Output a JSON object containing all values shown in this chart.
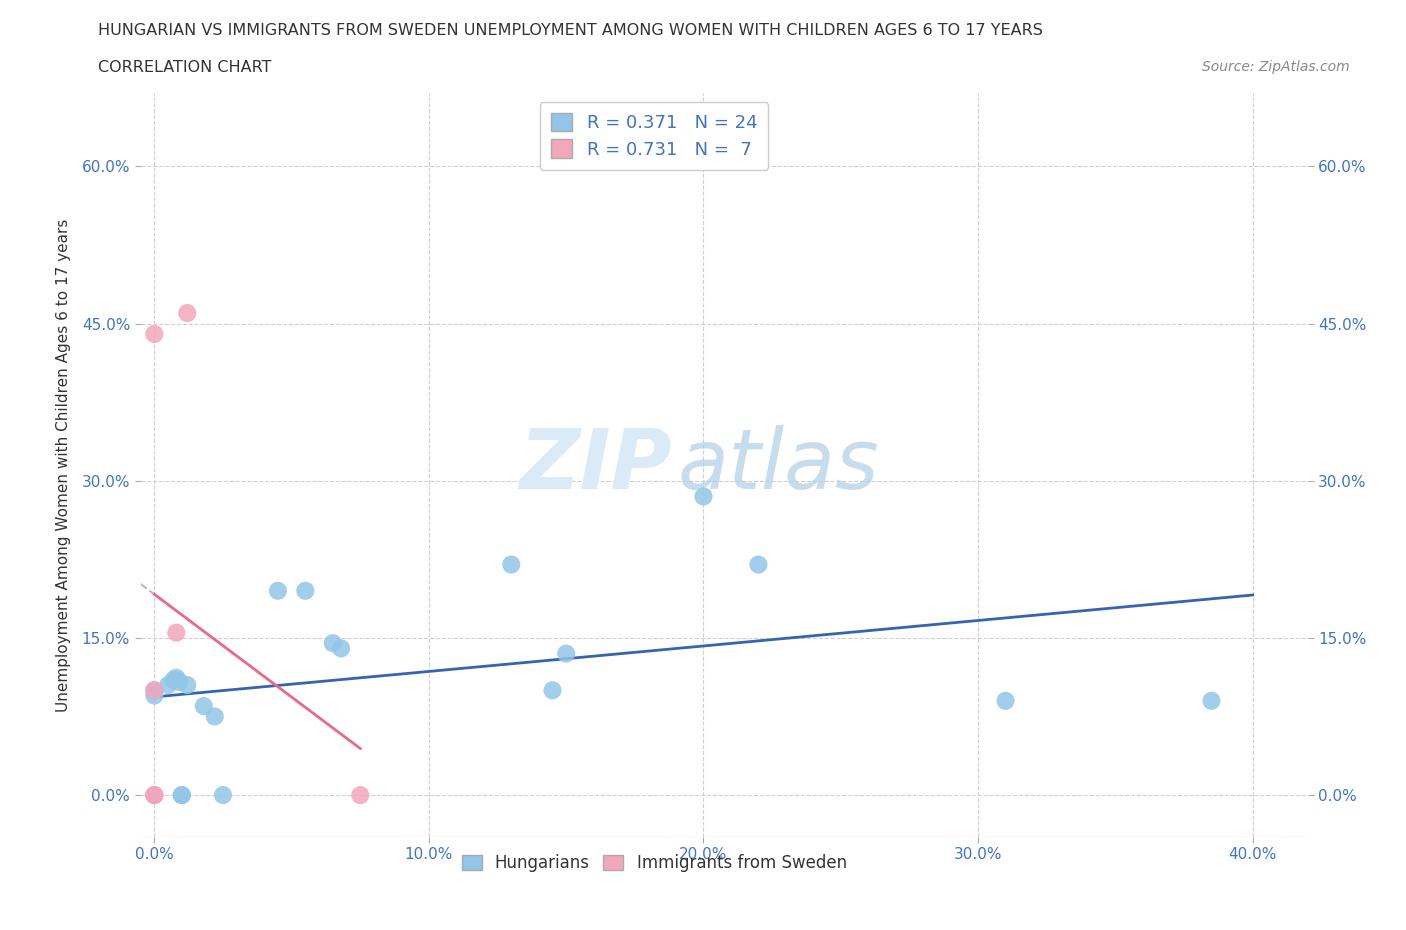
{
  "title": "HUNGARIAN VS IMMIGRANTS FROM SWEDEN UNEMPLOYMENT AMONG WOMEN WITH CHILDREN AGES 6 TO 17 YEARS",
  "subtitle": "CORRELATION CHART",
  "source": "Source: ZipAtlas.com",
  "ylabel": "Unemployment Among Women with Children Ages 6 to 17 years",
  "xlim": [
    -0.005,
    0.42
  ],
  "ylim": [
    -0.04,
    0.67
  ],
  "yticks": [
    0.0,
    0.15,
    0.3,
    0.45,
    0.6
  ],
  "ytick_labels": [
    "0.0%",
    "15.0%",
    "30.0%",
    "45.0%",
    "60.0%"
  ],
  "xticks": [
    0.0,
    0.1,
    0.2,
    0.3,
    0.4
  ],
  "xtick_labels": [
    "0.0%",
    "10.0%",
    "20.0%",
    "30.0%",
    "40.0%"
  ],
  "blue_color": "#92c5e8",
  "pink_color": "#f2a7bc",
  "blue_line_color": "#3565b0",
  "pink_line_color": "#e8698a",
  "text_color": "#333333",
  "tick_color": "#4472c4",
  "grid_color": "#d0d0d0",
  "watermark_color": "#daeaf7",
  "R_blue": 0.371,
  "N_blue": 24,
  "R_pink": 0.731,
  "N_pink": 7,
  "hungarian_points": [
    [
      0.0,
      0.095
    ],
    [
      0.0,
      0.1
    ],
    [
      0.0,
      0.0
    ],
    [
      0.005,
      0.105
    ],
    [
      0.007,
      0.11
    ],
    [
      0.008,
      0.112
    ],
    [
      0.009,
      0.108
    ],
    [
      0.01,
      0.0
    ],
    [
      0.01,
      0.0
    ],
    [
      0.012,
      0.105
    ],
    [
      0.018,
      0.085
    ],
    [
      0.022,
      0.075
    ],
    [
      0.025,
      0.0
    ],
    [
      0.045,
      0.195
    ],
    [
      0.055,
      0.195
    ],
    [
      0.065,
      0.145
    ],
    [
      0.068,
      0.14
    ],
    [
      0.13,
      0.22
    ],
    [
      0.145,
      0.1
    ],
    [
      0.15,
      0.135
    ],
    [
      0.2,
      0.285
    ],
    [
      0.22,
      0.22
    ],
    [
      0.31,
      0.09
    ],
    [
      0.385,
      0.09
    ]
  ],
  "sweden_points": [
    [
      0.0,
      0.44
    ],
    [
      0.0,
      0.1
    ],
    [
      0.0,
      0.0
    ],
    [
      0.0,
      0.0
    ],
    [
      0.008,
      0.155
    ],
    [
      0.012,
      0.46
    ],
    [
      0.075,
      0.0
    ]
  ]
}
